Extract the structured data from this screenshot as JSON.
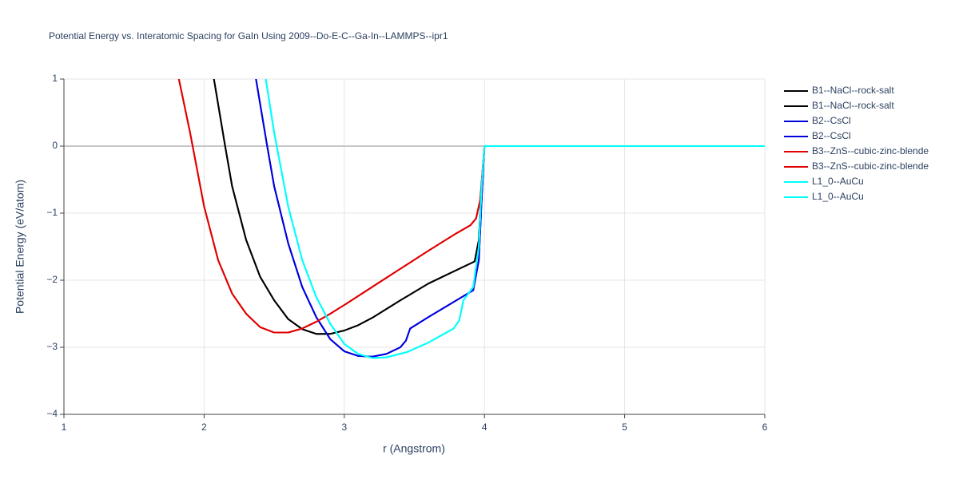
{
  "chart_data": {
    "type": "line",
    "title": "Potential Energy vs. Interatomic Spacing for GaIn Using 2009--Do-E-C--Ga-In--LAMMPS--ipr1",
    "x_label": "r (Angstrom)",
    "y_label": "Potential Energy (eV/atom)",
    "xlim": [
      1,
      6
    ],
    "xticks": [
      1,
      2,
      3,
      4,
      5,
      6
    ],
    "ylim": [
      -4,
      1
    ],
    "yticks": [
      {
        "value": -4,
        "label": "−4"
      },
      {
        "value": -3,
        "label": "−3"
      },
      {
        "value": -2,
        "label": "−2"
      },
      {
        "value": -1,
        "label": "−1"
      },
      0,
      1
    ],
    "grid": true,
    "legend": "right",
    "series": [
      {
        "name": "B1--NaCl--rock-salt",
        "color": "#000000",
        "x": [
          2.07,
          2.15,
          2.2,
          2.3,
          2.4,
          2.5,
          2.6,
          2.7,
          2.8,
          2.9,
          3.0,
          3.1,
          3.2,
          3.4,
          3.6,
          3.8,
          3.93,
          3.96,
          3.98,
          4.0,
          6
        ],
        "values": [
          1,
          0,
          -0.6,
          -1.4,
          -1.95,
          -2.3,
          -2.58,
          -2.73,
          -2.8,
          -2.8,
          -2.75,
          -2.67,
          -2.56,
          -2.3,
          -2.05,
          -1.85,
          -1.72,
          -1.4,
          -0.6,
          0,
          0
        ]
      },
      {
        "name": "B1--NaCl--rock-salt",
        "color": "#000000",
        "x": [
          2.07,
          2.15,
          2.2,
          2.3,
          2.4,
          2.5,
          2.6,
          2.7,
          2.8,
          2.9,
          3.0,
          3.1,
          3.2,
          3.4,
          3.6,
          3.8,
          3.93,
          3.96,
          3.98,
          4.0,
          6
        ],
        "values": [
          1,
          0,
          -0.6,
          -1.4,
          -1.95,
          -2.3,
          -2.58,
          -2.73,
          -2.8,
          -2.8,
          -2.75,
          -2.67,
          -2.56,
          -2.3,
          -2.05,
          -1.85,
          -1.72,
          -1.4,
          -0.6,
          0,
          0
        ]
      },
      {
        "name": "B2--CsCl",
        "color": "#0000dd",
        "x": [
          2.37,
          2.45,
          2.5,
          2.6,
          2.7,
          2.8,
          2.9,
          3.0,
          3.1,
          3.2,
          3.3,
          3.4,
          3.44,
          3.47,
          3.6,
          3.8,
          3.92,
          3.96,
          3.98,
          4.0,
          6
        ],
        "values": [
          1,
          0,
          -0.6,
          -1.45,
          -2.1,
          -2.55,
          -2.88,
          -3.06,
          -3.13,
          -3.14,
          -3.1,
          -3.0,
          -2.9,
          -2.72,
          -2.55,
          -2.3,
          -2.15,
          -1.7,
          -0.8,
          0,
          0
        ]
      },
      {
        "name": "B2--CsCl",
        "color": "#0000dd",
        "x": [
          2.37,
          2.45,
          2.5,
          2.6,
          2.7,
          2.8,
          2.9,
          3.0,
          3.1,
          3.2,
          3.3,
          3.4,
          3.44,
          3.47,
          3.6,
          3.8,
          3.92,
          3.96,
          3.98,
          4.0,
          6
        ],
        "values": [
          1,
          0,
          -0.6,
          -1.45,
          -2.1,
          -2.55,
          -2.88,
          -3.06,
          -3.13,
          -3.14,
          -3.1,
          -3.0,
          -2.9,
          -2.72,
          -2.55,
          -2.3,
          -2.15,
          -1.7,
          -0.8,
          0,
          0
        ]
      },
      {
        "name": "B3--ZnS--cubic-zinc-blende",
        "color": "#e00000",
        "x": [
          1.82,
          1.9,
          2.0,
          2.1,
          2.2,
          2.3,
          2.4,
          2.5,
          2.6,
          2.7,
          2.8,
          2.9,
          3.0,
          3.2,
          3.4,
          3.6,
          3.8,
          3.9,
          3.94,
          3.97,
          4.0,
          6
        ],
        "values": [
          1,
          0.2,
          -0.9,
          -1.7,
          -2.2,
          -2.5,
          -2.7,
          -2.78,
          -2.78,
          -2.72,
          -2.62,
          -2.5,
          -2.37,
          -2.1,
          -1.83,
          -1.56,
          -1.3,
          -1.18,
          -1.08,
          -0.8,
          0,
          0
        ]
      },
      {
        "name": "B3--ZnS--cubic-zinc-blende",
        "color": "#e00000",
        "x": [
          1.82,
          1.9,
          2.0,
          2.1,
          2.2,
          2.3,
          2.4,
          2.5,
          2.6,
          2.7,
          2.8,
          2.9,
          3.0,
          3.2,
          3.4,
          3.6,
          3.8,
          3.9,
          3.94,
          3.97,
          4.0,
          6
        ],
        "values": [
          1,
          0.2,
          -0.9,
          -1.7,
          -2.2,
          -2.5,
          -2.7,
          -2.78,
          -2.78,
          -2.72,
          -2.62,
          -2.5,
          -2.37,
          -2.1,
          -1.83,
          -1.56,
          -1.3,
          -1.18,
          -1.08,
          -0.8,
          0,
          0
        ]
      },
      {
        "name": "L1_0--AuCu",
        "color": "#00ffff",
        "x": [
          2.44,
          2.5,
          2.6,
          2.7,
          2.8,
          2.9,
          3.0,
          3.1,
          3.2,
          3.3,
          3.45,
          3.6,
          3.78,
          3.82,
          3.85,
          3.92,
          3.96,
          3.98,
          4.0,
          6
        ],
        "values": [
          1,
          0.2,
          -0.9,
          -1.7,
          -2.25,
          -2.65,
          -2.95,
          -3.1,
          -3.16,
          -3.15,
          -3.07,
          -2.93,
          -2.72,
          -2.6,
          -2.3,
          -2.1,
          -1.5,
          -0.6,
          0,
          0
        ]
      },
      {
        "name": "L1_0--AuCu",
        "color": "#00ffff",
        "x": [
          2.44,
          2.5,
          2.6,
          2.7,
          2.8,
          2.9,
          3.0,
          3.1,
          3.2,
          3.3,
          3.45,
          3.6,
          3.78,
          3.82,
          3.85,
          3.92,
          3.96,
          3.98,
          4.0,
          6
        ],
        "values": [
          1,
          0.2,
          -0.9,
          -1.7,
          -2.25,
          -2.65,
          -2.95,
          -3.1,
          -3.16,
          -3.15,
          -3.07,
          -2.93,
          -2.72,
          -2.6,
          -2.3,
          -2.1,
          -1.5,
          -0.6,
          0,
          0
        ]
      }
    ]
  }
}
